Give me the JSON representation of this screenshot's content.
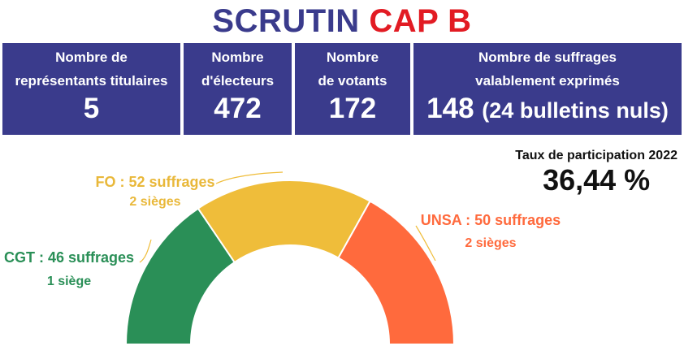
{
  "header": {
    "title_part1": "SCRUTIN",
    "title_part2": "CAP B"
  },
  "stats": [
    {
      "label": "Nombre de\nreprésentants titulaires",
      "value": "5",
      "extra": ""
    },
    {
      "label": "Nombre\nd'électeurs",
      "value": "472",
      "extra": ""
    },
    {
      "label": "Nombre\nde votants",
      "value": "172",
      "extra": ""
    },
    {
      "label": "Nombre de suffrages\nvalablement exprimés",
      "value": "148",
      "extra": "(24 bulletins nuls)"
    }
  ],
  "participation": {
    "label": "Taux de participation 2022",
    "value": "36,44 %"
  },
  "chart_data": {
    "type": "pie",
    "style": "half-donut",
    "segments": [
      {
        "name": "CGT",
        "label": "CGT : 46 suffrages",
        "sub": "1 siège",
        "suffrages": 46,
        "sieges": 1,
        "color": "#2a8f57"
      },
      {
        "name": "FO",
        "label": "FO : 52 suffrages",
        "sub": "2 sièges",
        "suffrages": 52,
        "sieges": 2,
        "color": "#efbd3a"
      },
      {
        "name": "UNSA",
        "label": "UNSA : 50 suffrages",
        "sub": "2 sièges",
        "suffrages": 50,
        "sieges": 2,
        "color": "#ff6a3d"
      }
    ],
    "label_colors": {
      "CGT": "#2a8f57",
      "FO": "#e9b83a",
      "UNSA": "#ff6a3d"
    },
    "leader_color": "#efbd3a"
  }
}
